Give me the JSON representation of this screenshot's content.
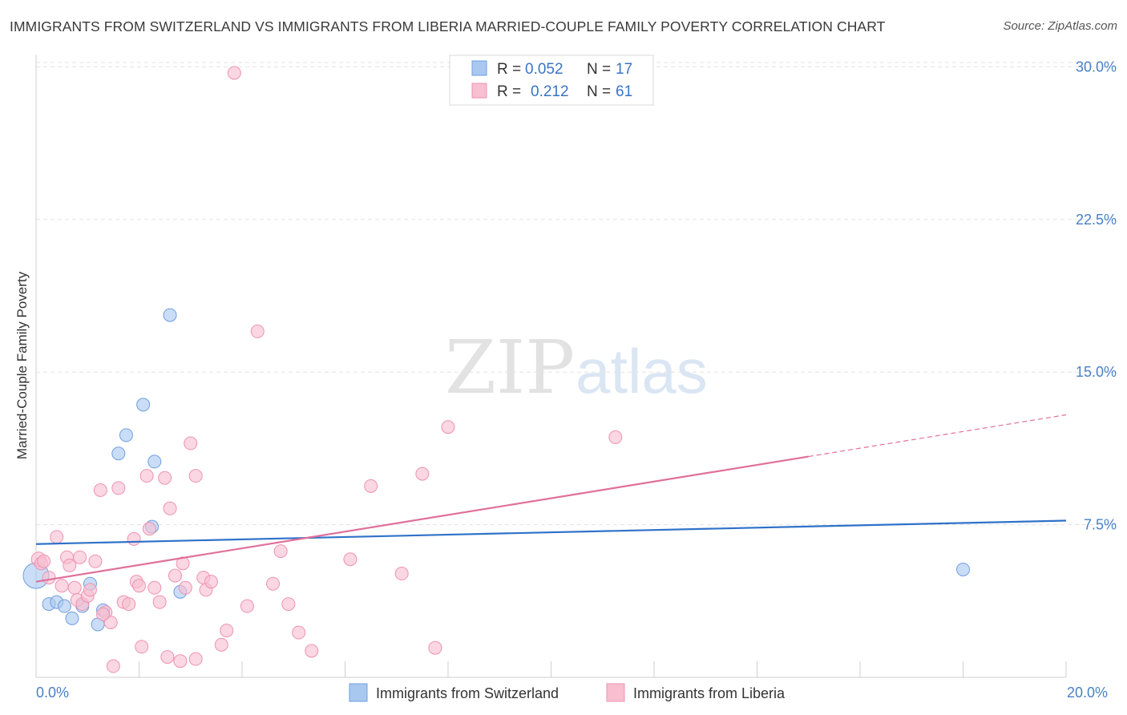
{
  "title": "IMMIGRANTS FROM SWITZERLAND VS IMMIGRANTS FROM LIBERIA MARRIED-COUPLE FAMILY POVERTY CORRELATION CHART",
  "source": "Source: ZipAtlas.com",
  "watermark": {
    "zip": "ZIP",
    "atlas": "atlas"
  },
  "colors": {
    "switzerland_fill": "#a9c8f0",
    "switzerland_stroke": "#6f9fe0",
    "switzerland_line": "#2f72c9",
    "liberia_fill": "#f7bfd0",
    "liberia_stroke": "#ee93b1",
    "liberia_line": "#e0709a",
    "tick_text": "#4a7fc8",
    "grid": "#e3e3e3"
  },
  "chart_data": {
    "type": "scatter",
    "ylabel": "Married-Couple Family Poverty",
    "xlabel": "",
    "xlim": [
      0,
      20
    ],
    "ylim": [
      0,
      31
    ],
    "yticks": [
      7.5,
      15.0,
      22.5,
      30.0
    ],
    "ytick_labels": [
      "7.5%",
      "15.0%",
      "22.5%",
      "30.0%"
    ],
    "xtick_labels": {
      "min": "0.0%",
      "max": "20.0%"
    },
    "legend": {
      "rows": [
        {
          "r_label": "R =",
          "r_value": "0.052",
          "n_label": "N =",
          "n_value": "17"
        },
        {
          "r_label": "R =",
          "r_value": "0.212",
          "n_label": "N =",
          "n_value": "61"
        }
      ]
    },
    "series": [
      {
        "name": "Immigrants from Switzerland",
        "r": 0.052,
        "n": 17,
        "trend": {
          "x0": 0,
          "y0": 6.55,
          "x1": 20,
          "y1": 7.7
        },
        "points": [
          [
            0.0,
            5.0,
            16
          ],
          [
            0.25,
            3.6,
            8
          ],
          [
            0.4,
            3.7,
            8
          ],
          [
            0.55,
            3.5,
            8
          ],
          [
            0.7,
            2.9,
            8
          ],
          [
            0.9,
            3.5,
            8
          ],
          [
            1.05,
            4.6,
            8
          ],
          [
            1.2,
            2.6,
            8
          ],
          [
            1.3,
            3.3,
            8
          ],
          [
            1.6,
            11.0,
            8
          ],
          [
            1.75,
            11.9,
            8
          ],
          [
            2.08,
            13.4,
            8
          ],
          [
            2.25,
            7.4,
            8
          ],
          [
            2.3,
            10.6,
            8
          ],
          [
            2.6,
            17.8,
            8
          ],
          [
            2.8,
            4.2,
            8
          ],
          [
            18.0,
            5.3,
            8
          ]
        ]
      },
      {
        "name": "Immigrants from Liberia",
        "r": 0.212,
        "n": 61,
        "trend": {
          "x0": 0,
          "y0": 4.7,
          "x1": 15.0,
          "y1": 10.85,
          "dash_x1": 20,
          "dash_y1": 12.9
        },
        "points": [
          [
            0.05,
            5.8,
            9
          ],
          [
            0.1,
            5.6,
            8
          ],
          [
            0.25,
            4.9,
            8
          ],
          [
            0.4,
            6.9,
            8
          ],
          [
            0.5,
            4.5,
            8
          ],
          [
            0.6,
            5.9,
            8
          ],
          [
            0.65,
            5.5,
            8
          ],
          [
            0.75,
            4.4,
            8
          ],
          [
            0.8,
            3.8,
            8
          ],
          [
            0.85,
            5.9,
            8
          ],
          [
            0.9,
            3.6,
            8
          ],
          [
            1.0,
            4.0,
            8
          ],
          [
            1.05,
            4.3,
            8
          ],
          [
            1.15,
            5.7,
            8
          ],
          [
            1.25,
            9.2,
            8
          ],
          [
            1.35,
            3.2,
            8
          ],
          [
            1.45,
            2.7,
            8
          ],
          [
            1.5,
            0.55,
            8
          ],
          [
            1.6,
            9.3,
            8
          ],
          [
            1.7,
            3.7,
            8
          ],
          [
            1.8,
            3.6,
            8
          ],
          [
            1.9,
            6.8,
            8
          ],
          [
            1.95,
            4.7,
            8
          ],
          [
            2.0,
            4.5,
            8
          ],
          [
            2.05,
            1.5,
            8
          ],
          [
            2.15,
            9.9,
            8
          ],
          [
            2.2,
            7.3,
            8
          ],
          [
            2.3,
            4.4,
            8
          ],
          [
            2.4,
            3.7,
            8
          ],
          [
            2.5,
            9.8,
            8
          ],
          [
            2.55,
            1.0,
            8
          ],
          [
            2.6,
            8.3,
            8
          ],
          [
            2.7,
            5.0,
            8
          ],
          [
            2.8,
            0.8,
            8
          ],
          [
            2.85,
            5.6,
            8
          ],
          [
            2.9,
            4.4,
            8
          ],
          [
            3.0,
            11.5,
            8
          ],
          [
            3.1,
            0.9,
            8
          ],
          [
            3.1,
            9.9,
            8
          ],
          [
            3.25,
            4.9,
            8
          ],
          [
            3.3,
            4.3,
            8
          ],
          [
            3.4,
            4.7,
            8
          ],
          [
            3.6,
            1.6,
            8
          ],
          [
            3.7,
            2.3,
            8
          ],
          [
            3.85,
            29.7,
            8
          ],
          [
            4.1,
            3.5,
            8
          ],
          [
            4.3,
            17.0,
            8
          ],
          [
            4.6,
            4.6,
            8
          ],
          [
            4.75,
            6.2,
            8
          ],
          [
            4.9,
            3.6,
            8
          ],
          [
            5.1,
            2.2,
            8
          ],
          [
            5.35,
            1.3,
            8
          ],
          [
            6.1,
            5.8,
            8
          ],
          [
            6.5,
            9.4,
            8
          ],
          [
            7.1,
            5.1,
            8
          ],
          [
            7.5,
            10.0,
            8
          ],
          [
            7.75,
            1.45,
            8
          ],
          [
            8.0,
            12.3,
            8
          ],
          [
            11.25,
            11.8,
            8
          ],
          [
            0.15,
            5.7,
            8
          ],
          [
            1.3,
            3.1,
            8
          ]
        ]
      }
    ]
  }
}
